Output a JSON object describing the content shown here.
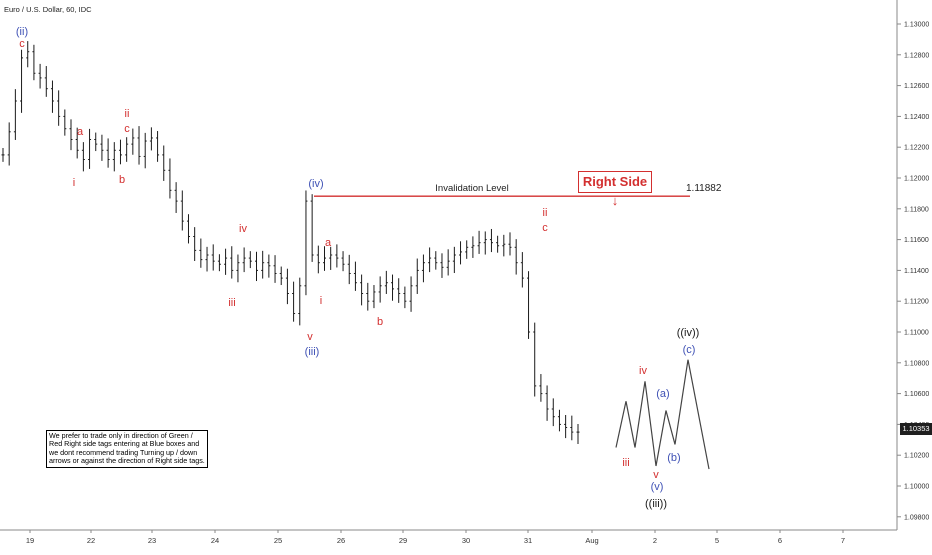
{
  "header": {
    "symbol_title": "Euro / U.S. Dollar, 60, IDC"
  },
  "price_axis": {
    "ticks": [
      "1.13000",
      "1.12800",
      "1.12600",
      "1.12400",
      "1.12200",
      "1.12000",
      "1.11800",
      "1.11600",
      "1.11400",
      "1.11200",
      "1.11000",
      "1.10800",
      "1.10600",
      "1.10400",
      "1.10200",
      "1.10000",
      "1.09800"
    ],
    "current_price": "1.10353"
  },
  "time_axis": {
    "labels": [
      "19",
      "22",
      "23",
      "24",
      "25",
      "26",
      "29",
      "30",
      "31",
      "Aug",
      "2",
      "5",
      "6",
      "7"
    ]
  },
  "invalidation": {
    "label": "Invalidation Level",
    "value_label": "1.11882",
    "value": 1.11882
  },
  "right_side_tag": {
    "text": "Right Side",
    "arrow": "↓"
  },
  "disclaimer": "We prefer to trade only in direction of Green / Red Right side tags entering at Blue boxes and we dont recommend trading Turning up / down arrows or against the direction of Right side tags.",
  "colors": {
    "candle": "#1a1a1a",
    "red": "#d32f2f",
    "blue": "#3f51b5",
    "black": "#1a1a1a",
    "projection": "#444444"
  },
  "wave_labels": [
    {
      "text": "(ii)",
      "color": "blue"
    },
    {
      "text": "c",
      "color": "red"
    },
    {
      "text": "a",
      "color": "red"
    },
    {
      "text": "i",
      "color": "red"
    },
    {
      "text": "ii",
      "color": "red"
    },
    {
      "text": "c",
      "color": "red"
    },
    {
      "text": "b",
      "color": "red"
    },
    {
      "text": "iv",
      "color": "red"
    },
    {
      "text": "iii",
      "color": "red"
    },
    {
      "text": "(iv)",
      "color": "blue"
    },
    {
      "text": "a",
      "color": "red"
    },
    {
      "text": "i",
      "color": "red"
    },
    {
      "text": "v",
      "color": "red"
    },
    {
      "text": "(iii)",
      "color": "blue"
    },
    {
      "text": "b",
      "color": "red"
    },
    {
      "text": "ii",
      "color": "red"
    },
    {
      "text": "c",
      "color": "red"
    },
    {
      "text": "iv",
      "color": "red"
    },
    {
      "text": "iii",
      "color": "red"
    },
    {
      "text": "v",
      "color": "red"
    },
    {
      "text": "(v)",
      "color": "blue"
    },
    {
      "text": "((iii))",
      "color": "black"
    },
    {
      "text": "(a)",
      "color": "blue"
    },
    {
      "text": "(b)",
      "color": "blue"
    },
    {
      "text": "(c)",
      "color": "blue"
    },
    {
      "text": "((iv))",
      "color": "black"
    }
  ],
  "chart_data": {
    "type": "line",
    "title": "Euro / U.S. Dollar, 60, IDC",
    "ylim": [
      1.0975,
      1.1315
    ],
    "x_labels": [
      "19",
      "22",
      "23",
      "24",
      "25",
      "26",
      "29",
      "30",
      "31",
      "Aug",
      "2",
      "5",
      "6",
      "7"
    ],
    "series": [
      {
        "values": [
          1.1215,
          1.123,
          1.125,
          1.1278,
          1.1282,
          1.1268,
          1.1265,
          1.1258,
          1.125,
          1.124,
          1.1232,
          1.1225,
          1.1218,
          1.1212,
          1.1225,
          1.1222,
          1.1218,
          1.1212,
          1.1218,
          1.1215,
          1.1222,
          1.1226,
          1.1214,
          1.1224,
          1.1226,
          1.1215,
          1.1205,
          1.1192,
          1.1185,
          1.1172,
          1.1162,
          1.1153,
          1.1147,
          1.115,
          1.1146,
          1.1144,
          1.1148,
          1.114,
          1.1145,
          1.1148,
          1.1146,
          1.114,
          1.1145,
          1.1143,
          1.1138,
          1.1135,
          1.1125,
          1.1112,
          1.113,
          1.1185,
          1.115,
          1.1145,
          1.1148,
          1.115,
          1.1148,
          1.1144,
          1.1138,
          1.1132,
          1.1125,
          1.112,
          1.1126,
          1.113,
          1.1132,
          1.1128,
          1.1125,
          1.112,
          1.113,
          1.114,
          1.1145,
          1.1148,
          1.1145,
          1.1142,
          1.1146,
          1.115,
          1.1152,
          1.1155,
          1.1156,
          1.1158,
          1.116,
          1.1158,
          1.1156,
          1.1157,
          1.1155,
          1.1145,
          1.1135,
          1.11,
          1.1065,
          1.106,
          1.105,
          1.1045,
          1.104,
          1.1038,
          1.1035,
          1.1035
        ]
      },
      {
        "name": "projection",
        "values": [
          1.1035,
          1.1025,
          1.1055,
          1.1025,
          1.1068,
          1.1013,
          1.1049,
          1.1027,
          1.1082,
          1.1011
        ]
      }
    ]
  }
}
